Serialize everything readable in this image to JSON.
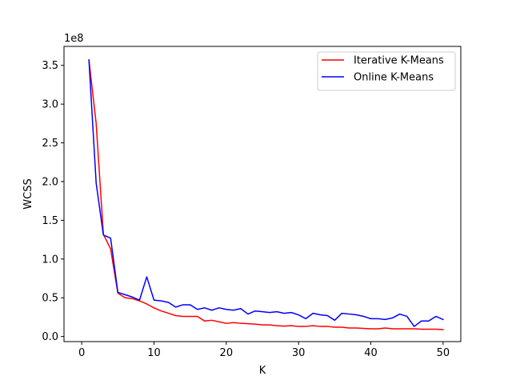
{
  "chart_data": {
    "type": "line",
    "title": "",
    "xlabel": "K",
    "ylabel": "WCSS",
    "y_offset_text": "1e8",
    "xlim": [
      -2.45,
      52.45
    ],
    "ylim": [
      -0.0656,
      3.745
    ],
    "x_ticks": [
      0,
      10,
      20,
      30,
      40,
      50
    ],
    "x_tick_labels": [
      "0",
      "10",
      "20",
      "30",
      "40",
      "50"
    ],
    "y_ticks": [
      0,
      0.5,
      1.0,
      1.5,
      2.0,
      2.5,
      3.0,
      3.5
    ],
    "y_tick_labels": [
      "0.0",
      "0.5",
      "1.0",
      "1.5",
      "2.0",
      "2.5",
      "3.0",
      "3.5"
    ],
    "grid": false,
    "legend_position": "upper right",
    "x": [
      1,
      2,
      3,
      4,
      5,
      6,
      7,
      8,
      9,
      10,
      11,
      12,
      13,
      14,
      15,
      16,
      17,
      18,
      19,
      20,
      21,
      22,
      23,
      24,
      25,
      26,
      27,
      28,
      29,
      30,
      31,
      32,
      33,
      34,
      35,
      36,
      37,
      38,
      39,
      40,
      41,
      42,
      43,
      44,
      45,
      46,
      47,
      48,
      49,
      50
    ],
    "series": [
      {
        "name": "Iterative K-Means",
        "color": "#ff0000",
        "values": [
          3.57,
          2.75,
          1.32,
          1.13,
          0.56,
          0.5,
          0.49,
          0.46,
          0.42,
          0.37,
          0.33,
          0.3,
          0.27,
          0.26,
          0.26,
          0.26,
          0.2,
          0.21,
          0.19,
          0.17,
          0.18,
          0.17,
          0.165,
          0.16,
          0.15,
          0.15,
          0.14,
          0.135,
          0.14,
          0.13,
          0.13,
          0.14,
          0.13,
          0.13,
          0.12,
          0.12,
          0.11,
          0.11,
          0.105,
          0.1,
          0.1,
          0.11,
          0.1,
          0.1,
          0.1,
          0.1,
          0.095,
          0.095,
          0.095,
          0.09
        ]
      },
      {
        "name": "Online K-Means",
        "color": "#0000ff",
        "values": [
          3.57,
          1.98,
          1.31,
          1.27,
          0.57,
          0.54,
          0.51,
          0.47,
          0.77,
          0.47,
          0.46,
          0.44,
          0.38,
          0.41,
          0.41,
          0.35,
          0.37,
          0.34,
          0.37,
          0.35,
          0.34,
          0.36,
          0.29,
          0.33,
          0.32,
          0.31,
          0.32,
          0.3,
          0.31,
          0.28,
          0.23,
          0.3,
          0.28,
          0.27,
          0.21,
          0.3,
          0.29,
          0.28,
          0.26,
          0.23,
          0.23,
          0.22,
          0.24,
          0.29,
          0.26,
          0.13,
          0.2,
          0.2,
          0.26,
          0.22
        ]
      }
    ]
  }
}
